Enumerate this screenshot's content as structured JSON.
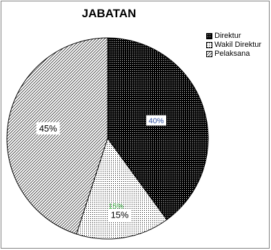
{
  "chart_data": {
    "type": "pie",
    "title": "JABATAN",
    "categories": [
      "Direktur",
      "Wakil Direktur",
      "Pelaksana"
    ],
    "values": [
      40,
      15,
      45
    ],
    "labels": [
      "40%",
      "15%",
      "45%"
    ],
    "ghost_label": "15%",
    "legend_position": "top-right",
    "patterns": [
      "dense-black",
      "dotted",
      "diagonal-hatch"
    ],
    "colors": {
      "direktur_label": "#2f4f9f",
      "ghost_label": "#3cb043",
      "outline": "#000000"
    }
  }
}
